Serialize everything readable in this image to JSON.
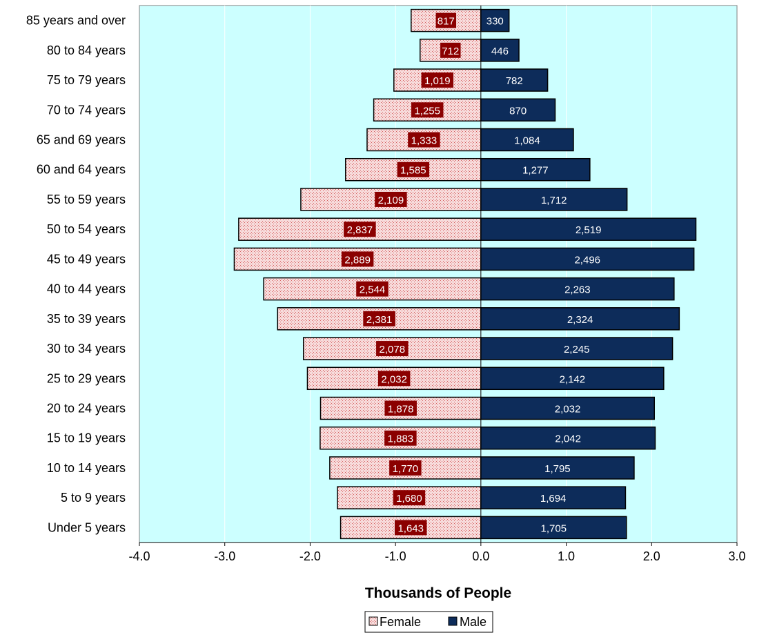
{
  "chart_data": {
    "type": "bar",
    "orientation": "horizontal",
    "title": "",
    "xlabel": "Thousands of People",
    "ylabel": "",
    "xlim": [
      -4.0,
      3.0
    ],
    "xticks": [
      "-4.0",
      "-3.0",
      "-2.0",
      "-1.0",
      "0.0",
      "1.0",
      "2.0",
      "3.0"
    ],
    "categories": [
      "85 years and over",
      "80 to 84 years",
      "75 to 79 years",
      "70 to 74 years",
      "65 and 69 years",
      "60 and 64 years",
      "55 to 59 years",
      "50 to 54 years",
      "45 to 49 years",
      "40 to 44 years",
      "35 to 39 years",
      "30 to 34 years",
      "25 to 29 years",
      "20 to 24 years",
      "15 to 19 years",
      "10 to 14 years",
      "5 to 9 years",
      "Under 5 years"
    ],
    "series": [
      {
        "name": "Female",
        "values": [
          -0.817,
          -0.712,
          -1.019,
          -1.255,
          -1.333,
          -1.585,
          -2.109,
          -2.837,
          -2.889,
          -2.544,
          -2.381,
          -2.078,
          -2.032,
          -1.878,
          -1.883,
          -1.77,
          -1.68,
          -1.643
        ],
        "labels": [
          "817",
          "712",
          "1,019",
          "1,255",
          "1,333",
          "1,585",
          "2,109",
          "2,837",
          "2,889",
          "2,544",
          "2,381",
          "2,078",
          "2,032",
          "1,878",
          "1,883",
          "1,770",
          "1,680",
          "1,643"
        ],
        "color": "#f4c6c6",
        "label_color": "#8b0000"
      },
      {
        "name": "Male",
        "values": [
          0.33,
          0.446,
          0.782,
          0.87,
          1.084,
          1.277,
          1.712,
          2.519,
          2.496,
          2.263,
          2.324,
          2.245,
          2.142,
          2.032,
          2.042,
          1.795,
          1.694,
          1.705
        ],
        "labels": [
          "330",
          "446",
          "782",
          "870",
          "1,084",
          "1,277",
          "1,712",
          "2,519",
          "2,496",
          "2,263",
          "2,324",
          "2,245",
          "2,142",
          "2,032",
          "2,042",
          "1,795",
          "1,694",
          "1,705"
        ],
        "color": "#0d2c5a"
      }
    ],
    "plot_background": "#ccffff",
    "grid": true,
    "legend": "bottom-center"
  }
}
